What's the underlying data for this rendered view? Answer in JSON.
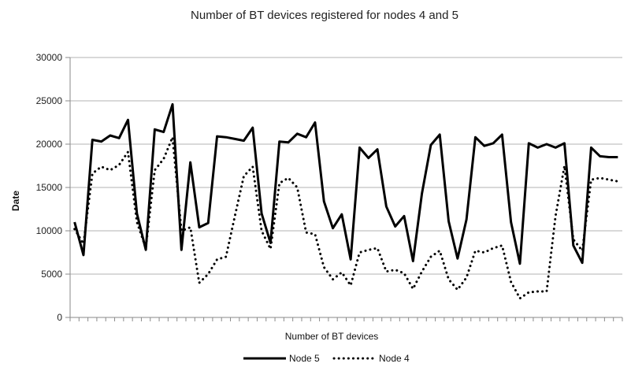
{
  "chart_data": {
    "type": "line",
    "title": "Number of BT devices registered for nodes 4 and 5",
    "xlabel": "Number of BT devices",
    "ylabel": "Date",
    "ylim": [
      0,
      30000
    ],
    "yticks": [
      "0",
      "5000",
      "10000",
      "15000",
      "20000",
      "25000",
      "30000"
    ],
    "x_categories_count": 62,
    "legend_position": "bottom",
    "grid": "horizontal",
    "series": [
      {
        "name": "Node 5",
        "style": "solid",
        "color": "#000000",
        "values": [
          11000,
          7200,
          20500,
          20300,
          21000,
          20700,
          22800,
          12000,
          7800,
          21700,
          21400,
          24600,
          7800,
          17900,
          10400,
          10900,
          20900,
          20800,
          20600,
          20400,
          21900,
          12000,
          8600,
          20300,
          20200,
          21200,
          20800,
          22500,
          13400,
          10300,
          11900,
          6700,
          19600,
          18400,
          19400,
          12800,
          10500,
          11700,
          6500,
          14300,
          19900,
          21100,
          11100,
          6800,
          11300,
          20800,
          19800,
          20100,
          21100,
          11000,
          6200,
          20100,
          19600,
          20000,
          19600,
          20100,
          8300,
          6300,
          19600,
          18600,
          18500,
          18500
        ]
      },
      {
        "name": "Node 4",
        "style": "dotted",
        "color": "#000000",
        "values": [
          10200,
          8500,
          16600,
          17400,
          17000,
          17600,
          19100,
          11000,
          8000,
          17000,
          18300,
          20800,
          10000,
          10400,
          4000,
          5000,
          6700,
          7000,
          11700,
          16300,
          17400,
          10000,
          7900,
          15500,
          16100,
          15000,
          9800,
          9600,
          5800,
          4400,
          5200,
          3700,
          7500,
          7800,
          8000,
          5300,
          5500,
          5100,
          3300,
          5300,
          7000,
          7700,
          4400,
          3200,
          4600,
          7700,
          7500,
          8000,
          8300,
          4100,
          2200,
          2900,
          3000,
          3000,
          11700,
          17500,
          9000,
          7700,
          15900,
          16100,
          15900,
          15700
        ]
      }
    ]
  }
}
